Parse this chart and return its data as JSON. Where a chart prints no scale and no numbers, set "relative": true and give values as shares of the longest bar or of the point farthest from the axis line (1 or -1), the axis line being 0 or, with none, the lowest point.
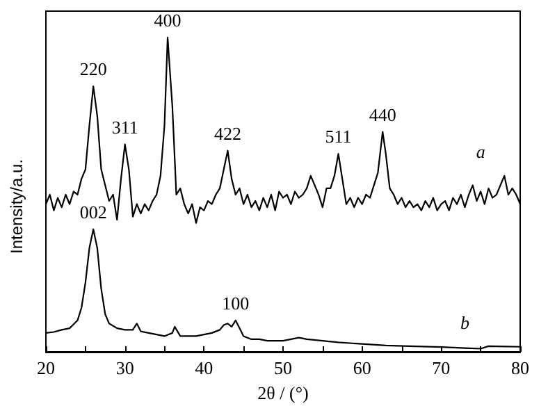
{
  "chart_data": {
    "type": "line",
    "relative": true,
    "xlabel": "2θ / (°)",
    "ylabel": "Intensity/a.u.",
    "xlim": [
      20,
      80
    ],
    "xticks": [
      20,
      {
        "value": 25,
        "label": null
      },
      30,
      {
        "value": 35,
        "label": null
      },
      40,
      {
        "value": 45,
        "label": null
      },
      50,
      {
        "value": 55,
        "label": null
      },
      60,
      {
        "value": 65,
        "label": null
      },
      70,
      {
        "value": 75,
        "label": null
      },
      80
    ],
    "grid": false,
    "legend": false,
    "marker": "none",
    "line_style": "solid",
    "series": [
      {
        "name": "a",
        "color": "#000000",
        "x": [
          20,
          20.5,
          21,
          21.5,
          22,
          22.5,
          23,
          23.5,
          24,
          24.5,
          25,
          25.5,
          26,
          26.5,
          27,
          27.5,
          28,
          28.5,
          29,
          29.5,
          30,
          30.5,
          31,
          31.5,
          32,
          32.5,
          33,
          33.5,
          34,
          34.5,
          35,
          35.4,
          36,
          36.5,
          37,
          37.5,
          38,
          38.5,
          39,
          39.5,
          40,
          40.5,
          41,
          41.5,
          42,
          42.5,
          43,
          43.5,
          44,
          44.5,
          45,
          45.5,
          46,
          46.5,
          47,
          47.5,
          48,
          48.5,
          49,
          49.5,
          50,
          50.5,
          51,
          51.5,
          52,
          52.5,
          53,
          53.5,
          54,
          54.5,
          55,
          55.5,
          56,
          56.5,
          57,
          57.5,
          58,
          58.5,
          59,
          59.5,
          60,
          60.5,
          61,
          61.5,
          62,
          62.6,
          63,
          63.5,
          64,
          64.5,
          65,
          65.5,
          66,
          66.5,
          67,
          67.5,
          68,
          68.5,
          69,
          69.5,
          70,
          70.5,
          71,
          71.5,
          72,
          72.5,
          73,
          73.5,
          74,
          74.5,
          75,
          75.5,
          76,
          76.5,
          77,
          77.5,
          78,
          78.5,
          79,
          79.5,
          80
        ],
        "values": [
          0.47,
          0.5,
          0.45,
          0.49,
          0.46,
          0.5,
          0.47,
          0.51,
          0.5,
          0.55,
          0.58,
          0.72,
          0.845,
          0.75,
          0.58,
          0.53,
          0.48,
          0.5,
          0.42,
          0.55,
          0.66,
          0.58,
          0.43,
          0.47,
          0.44,
          0.47,
          0.45,
          0.48,
          0.5,
          0.56,
          0.72,
          1.0,
          0.78,
          0.5,
          0.52,
          0.47,
          0.44,
          0.47,
          0.41,
          0.46,
          0.45,
          0.48,
          0.47,
          0.5,
          0.52,
          0.58,
          0.64,
          0.55,
          0.5,
          0.52,
          0.47,
          0.5,
          0.46,
          0.48,
          0.45,
          0.49,
          0.46,
          0.5,
          0.45,
          0.51,
          0.49,
          0.5,
          0.47,
          0.51,
          0.49,
          0.5,
          0.52,
          0.56,
          0.53,
          0.5,
          0.46,
          0.52,
          0.52,
          0.56,
          0.63,
          0.55,
          0.47,
          0.49,
          0.46,
          0.49,
          0.47,
          0.5,
          0.49,
          0.53,
          0.57,
          0.7,
          0.63,
          0.52,
          0.5,
          0.47,
          0.49,
          0.46,
          0.48,
          0.46,
          0.47,
          0.45,
          0.48,
          0.46,
          0.49,
          0.45,
          0.47,
          0.48,
          0.45,
          0.49,
          0.47,
          0.5,
          0.46,
          0.5,
          0.53,
          0.48,
          0.51,
          0.47,
          0.52,
          0.49,
          0.5,
          0.53,
          0.56,
          0.5,
          0.52,
          0.5,
          0.47
        ]
      },
      {
        "name": "b",
        "color": "#000000",
        "x": [
          20,
          21,
          22,
          23,
          24,
          24.5,
          25,
          25.5,
          26,
          26.5,
          27,
          27.5,
          28,
          29,
          30,
          31,
          31.5,
          32,
          33,
          34,
          35,
          36,
          36.3,
          37,
          38,
          39,
          40,
          41,
          42,
          42.5,
          43,
          43.5,
          44,
          44.5,
          45,
          46,
          47,
          48,
          49,
          50,
          51,
          52,
          53,
          55,
          57,
          60,
          63,
          66,
          70,
          73,
          75,
          76,
          78,
          80
        ],
        "values": [
          0.06,
          0.063,
          0.07,
          0.075,
          0.1,
          0.14,
          0.22,
          0.33,
          0.39,
          0.33,
          0.2,
          0.12,
          0.09,
          0.075,
          0.07,
          0.07,
          0.09,
          0.065,
          0.06,
          0.055,
          0.05,
          0.06,
          0.08,
          0.05,
          0.05,
          0.05,
          0.055,
          0.06,
          0.07,
          0.085,
          0.09,
          0.08,
          0.1,
          0.075,
          0.05,
          0.04,
          0.04,
          0.035,
          0.035,
          0.035,
          0.04,
          0.045,
          0.04,
          0.035,
          0.03,
          0.025,
          0.02,
          0.018,
          0.015,
          0.012,
          0.01,
          0.018,
          0.017,
          0.016
        ]
      }
    ],
    "annotations": [
      {
        "text": "220",
        "x": 26,
        "y": 0.845
      },
      {
        "text": "311",
        "x": 30,
        "y": 0.66
      },
      {
        "text": "400",
        "x": 35.4,
        "y": 1.0
      },
      {
        "text": "422",
        "x": 43,
        "y": 0.64
      },
      {
        "text": "511",
        "x": 57,
        "y": 0.63
      },
      {
        "text": "440",
        "x": 62.6,
        "y": 0.7
      },
      {
        "text": "002",
        "x": 26,
        "y": 0.39
      },
      {
        "text": "100",
        "x": 44,
        "y": 0.1
      }
    ]
  }
}
